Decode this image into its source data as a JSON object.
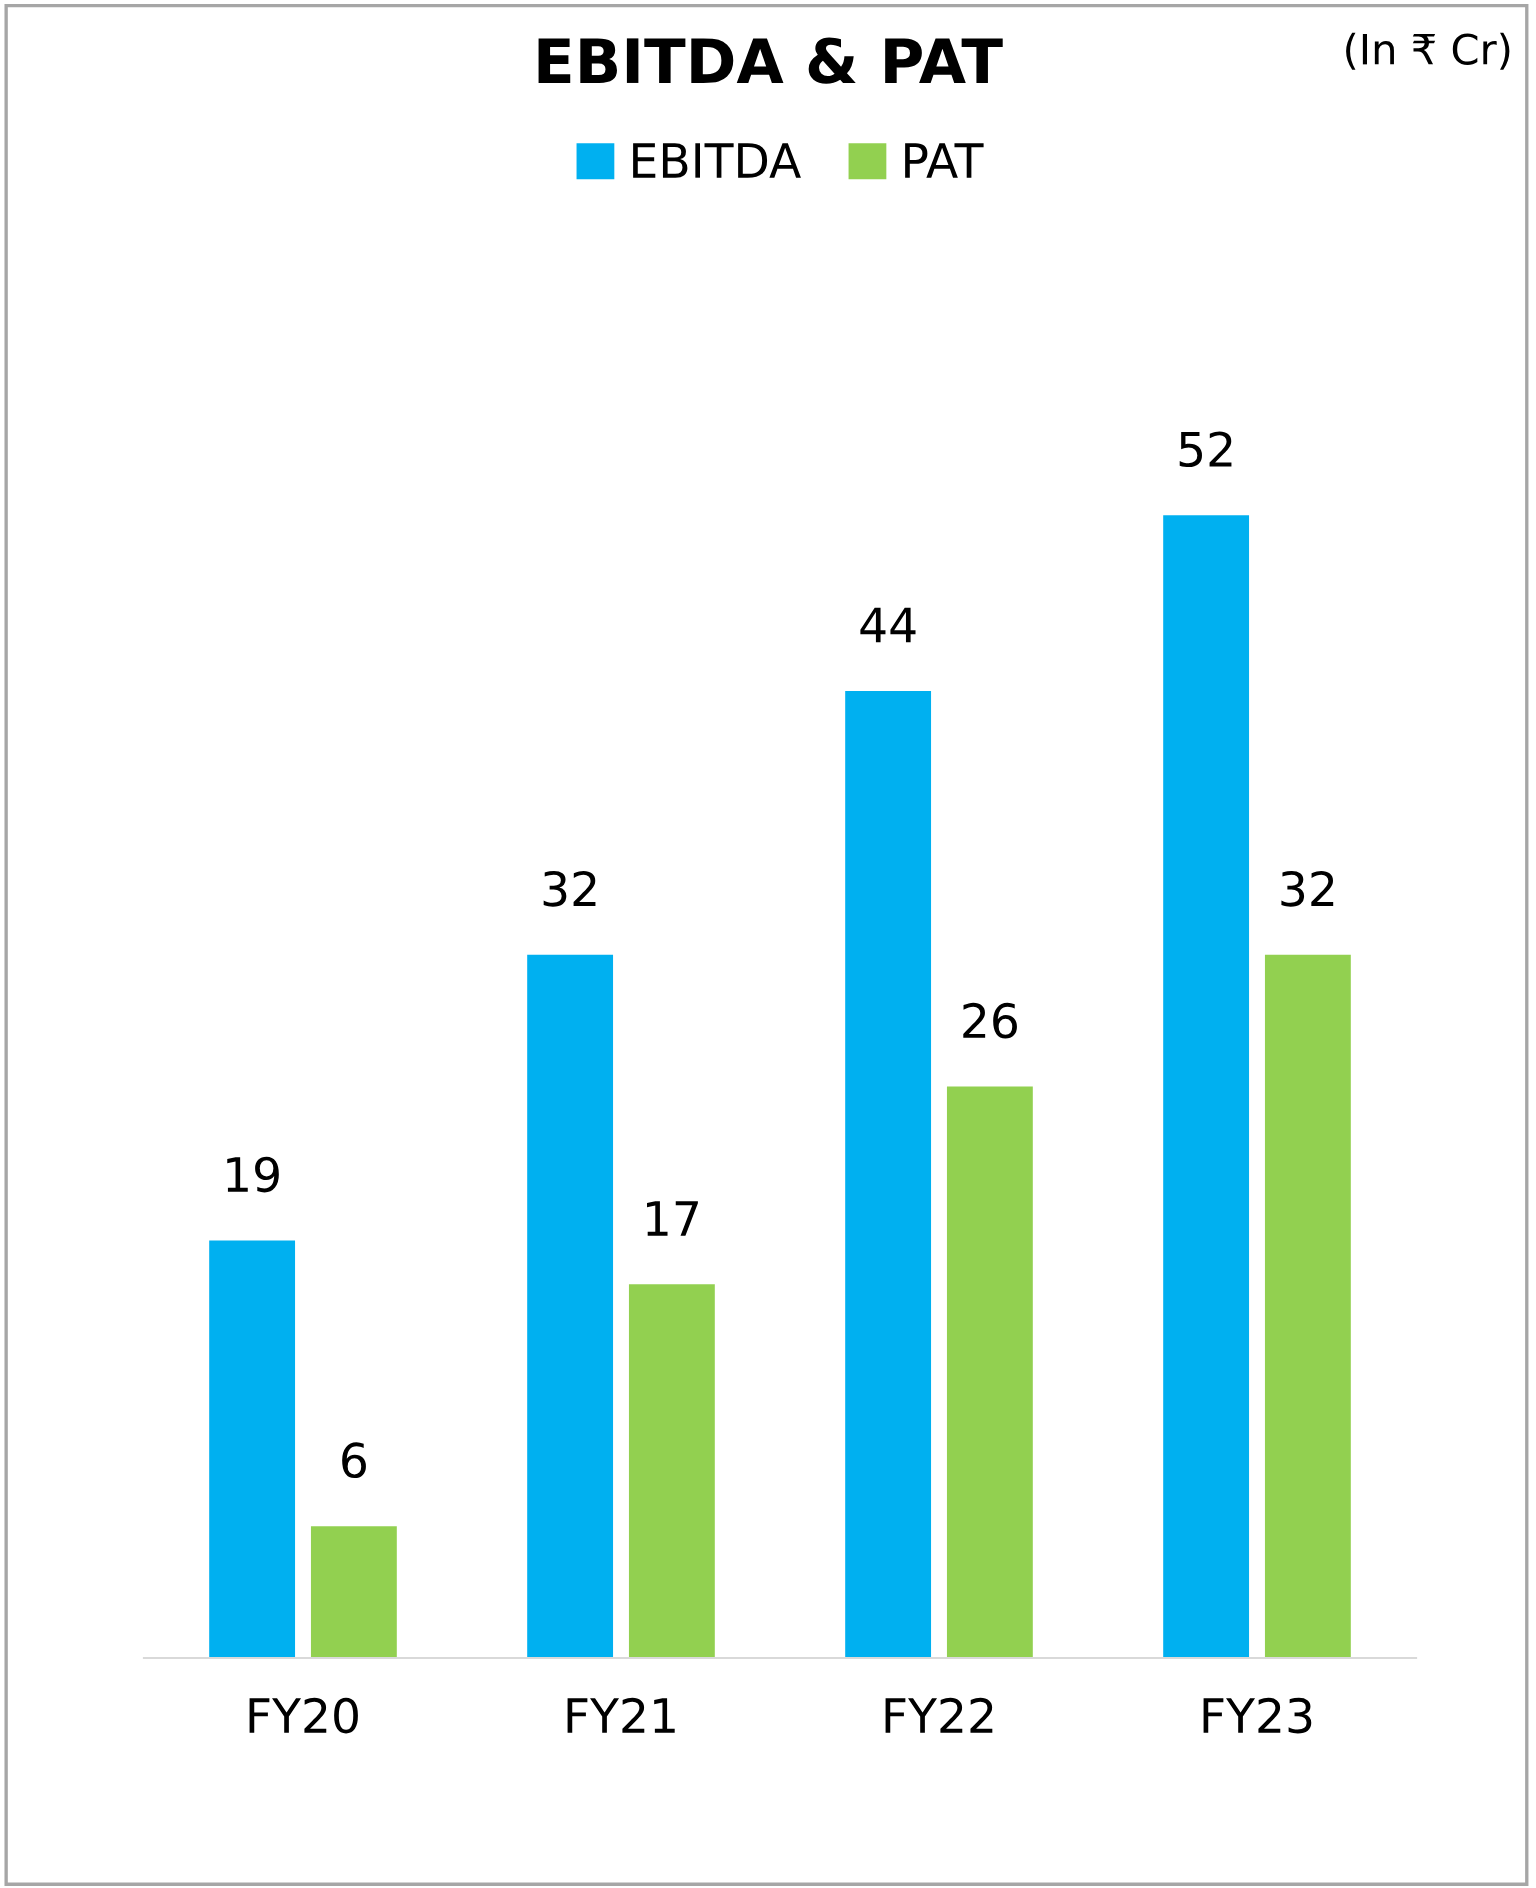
{
  "chart_data": {
    "type": "bar",
    "title": "EBITDA & PAT",
    "annotations": [
      "(In ₹ Cr)"
    ],
    "categories": [
      "FY20",
      "FY21",
      "FY22",
      "FY23"
    ],
    "series": [
      {
        "name": "EBITDA",
        "color": "#00b0f0",
        "values": [
          19,
          32,
          44,
          52
        ]
      },
      {
        "name": "PAT",
        "color": "#92d050",
        "values": [
          6,
          17,
          26,
          32
        ]
      }
    ],
    "data_labels": true,
    "legend": "top",
    "grid": false,
    "tick_labels": "x"
  }
}
